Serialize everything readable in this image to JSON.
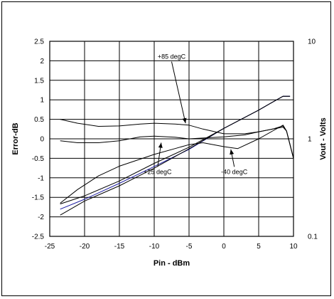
{
  "chart_data": {
    "type": "line",
    "title": "",
    "xlabel": "Pin - dBm",
    "ylabel_left": "Error-dB",
    "ylabel_right": "Vout - Volts",
    "x_ticks": [
      "-25",
      "-20",
      "-15",
      "-10",
      "-5",
      "0",
      "5",
      "10"
    ],
    "x_tick_values": [
      -25,
      -20,
      -15,
      -10,
      -5,
      0,
      5,
      10
    ],
    "y_left_ticks": [
      "2.5",
      "2",
      "1.5",
      "1",
      "0.5",
      "0",
      "-0.5",
      "-1",
      "-1.5",
      "-2",
      "-2.5"
    ],
    "y_left_tick_values": [
      2.5,
      2,
      1.5,
      1,
      0.5,
      0,
      -0.5,
      -1,
      -1.5,
      -2,
      -2.5
    ],
    "y_right_ticks": [
      "10",
      "1",
      "0.1"
    ],
    "y_right_tick_values": [
      10,
      1,
      0.1
    ],
    "xlim": [
      -25,
      10
    ],
    "ylim_left": [
      -2.5,
      2.5
    ],
    "ylim_right": [
      0.1,
      10
    ],
    "y_right_scale": "log",
    "grid": true,
    "annotations": [
      {
        "label": "+85 degC",
        "text_x": -7.5,
        "text_y": 2.05,
        "arrow_to": [
          -5.5,
          0.4
        ]
      },
      {
        "label": "+25 degC",
        "text_x": -9.5,
        "text_y": -0.9,
        "arrow_to": [
          -9.0,
          -0.1
        ]
      },
      {
        "label": "-40 degC",
        "text_x": 1.5,
        "text_y": -0.9,
        "arrow_to": [
          1.0,
          -0.27
        ]
      }
    ],
    "series": [
      {
        "axis": "right",
        "color": "#000000",
        "x": [
          -23.5,
          -20,
          -15,
          -10,
          -5,
          0,
          5,
          7,
          8.5,
          9.5
        ],
        "y": [
          0.215,
          0.26,
          0.37,
          0.56,
          0.82,
          1.28,
          1.97,
          2.38,
          2.73,
          2.73
        ]
      },
      {
        "axis": "right",
        "color": "#1a1aa0",
        "x": [
          -23.5,
          -20,
          -15,
          -10,
          -5,
          0,
          5,
          7,
          8.5,
          9.5
        ],
        "y": [
          0.19,
          0.24,
          0.35,
          0.52,
          0.78,
          1.28,
          1.97,
          2.38,
          2.73,
          2.73
        ]
      },
      {
        "axis": "right",
        "color": "#000000",
        "x": [
          -23.5,
          -20,
          -15,
          -10,
          -5,
          0,
          5,
          7,
          8.5,
          9.5
        ],
        "y": [
          0.165,
          0.23,
          0.33,
          0.5,
          0.79,
          1.28,
          1.97,
          2.38,
          2.73,
          2.73
        ]
      },
      {
        "axis": "left",
        "color": "#000000",
        "x": [
          -23.5,
          -21,
          -18,
          -15,
          -12,
          -10,
          -7,
          -5,
          -3,
          0,
          3,
          5,
          7,
          8.5,
          9,
          10
        ],
        "y": [
          0.5,
          0.4,
          0.32,
          0.33,
          0.38,
          0.4,
          0.38,
          0.35,
          0.25,
          0.13,
          0.13,
          0.18,
          0.25,
          0.3,
          0.2,
          -0.5
        ]
      },
      {
        "axis": "left",
        "color": "#000000",
        "x": [
          -23.5,
          -21,
          -18,
          -15,
          -12,
          -10,
          -7,
          -5,
          -3,
          0,
          3,
          5,
          7,
          8.5,
          9,
          10
        ],
        "y": [
          -0.05,
          -0.1,
          -0.1,
          -0.05,
          0.05,
          0.07,
          0.04,
          0.0,
          0.02,
          0.05,
          0.1,
          0.18,
          0.25,
          0.33,
          0.2,
          -0.5
        ]
      },
      {
        "axis": "left",
        "color": "#000000",
        "x": [
          -23.5,
          -21,
          -18,
          -15,
          -12,
          -10,
          -7,
          -5,
          -3,
          0,
          2,
          5,
          7,
          8.5,
          9,
          10
        ],
        "y": [
          -1.65,
          -1.3,
          -0.95,
          -0.7,
          -0.52,
          -0.4,
          -0.25,
          -0.15,
          -0.1,
          -0.2,
          -0.25,
          0.0,
          0.2,
          0.35,
          0.2,
          -0.5
        ]
      }
    ]
  }
}
